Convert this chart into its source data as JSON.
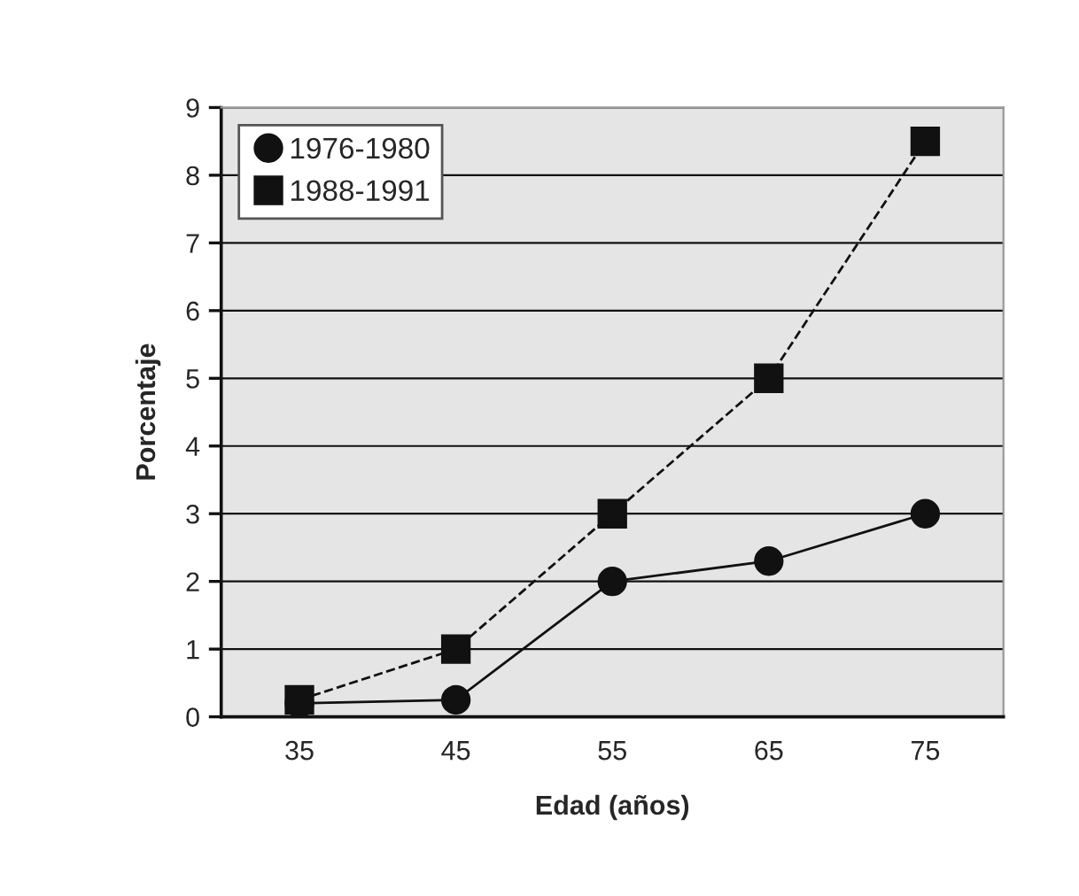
{
  "chart_data": {
    "type": "line",
    "xlabel": "Edad (años)",
    "ylabel": "Porcentaje",
    "categories": [
      "35",
      "45",
      "55",
      "65",
      "75"
    ],
    "series": [
      {
        "name": "1976-1980",
        "color": "#111111",
        "marker": "circle",
        "line_style": "solid",
        "values": [
          0.2,
          0.25,
          2,
          2.3,
          3
        ]
      },
      {
        "name": "1988-1991",
        "color": "#111111",
        "marker": "square",
        "line_style": "dashed",
        "values": [
          0.25,
          1,
          3,
          5,
          8.5
        ]
      }
    ],
    "ylim": [
      0,
      9
    ],
    "yticks": [
      0,
      1,
      2,
      3,
      4,
      5,
      6,
      7,
      8,
      9
    ],
    "grid": "y",
    "legend": "top left"
  }
}
